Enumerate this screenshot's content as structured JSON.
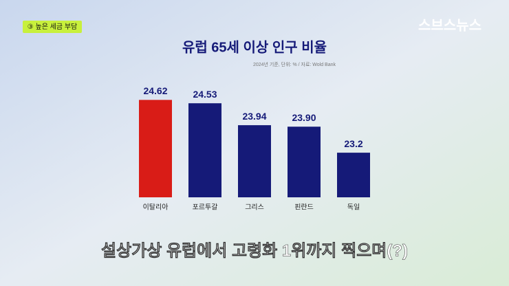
{
  "badge": "③ 높은 세금 부담",
  "logo": "스브스뉴스",
  "caption": "설상가상 유럽에서 고령화 1위까지 찍으며(?)",
  "chart_data": {
    "type": "bar",
    "title": "유럽 65세 이상 인구 비율",
    "subtitle": "2024년 기준, 단위: % / 자료: Wold Bank",
    "categories": [
      "이탈리아",
      "포르투갈",
      "그리스",
      "핀란드",
      "독일"
    ],
    "values": [
      24.62,
      24.53,
      23.94,
      23.9,
      23.2
    ],
    "value_labels": [
      "24.62",
      "24.53",
      "23.94",
      "23.90",
      "23.2"
    ],
    "colors": [
      "#d91c17",
      "#151a78",
      "#151a78",
      "#151a78",
      "#151a78"
    ],
    "ylim": [
      22,
      24.7
    ]
  }
}
